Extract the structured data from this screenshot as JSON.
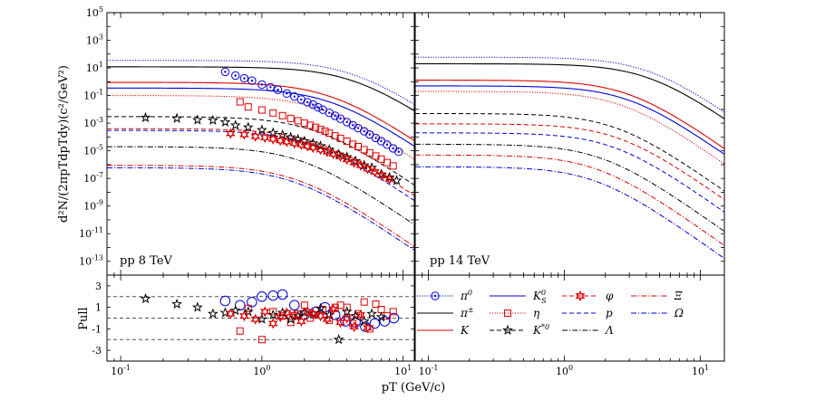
{
  "chart_data": {
    "type": "line",
    "xlabel": "p_T (GeV/c)",
    "xlabel_text": "pT (GeV/c)",
    "ylabel": "d^2N/(2π pT dpT dy)(c^2/GeV^2)",
    "ylabel_text": "d²N/(2πpTdpTdy)(c²/GeV²)",
    "pull_ylabel": "Pull",
    "xscale": "log",
    "yscale": "log",
    "panels": [
      {
        "id": "left",
        "annotation": "pp 8 TeV",
        "xlim": [
          0.08,
          12
        ],
        "ylim": [
          1e-14,
          100000.0
        ]
      },
      {
        "id": "right",
        "annotation": "pp 14 TeV",
        "xlim": [
          0.08,
          15
        ],
        "ylim": [
          1e-14,
          100000.0
        ]
      }
    ],
    "x_ticks": [
      0.1,
      1,
      10
    ],
    "x_tick_labels": [
      "10^-1",
      "10^0",
      "10^1"
    ],
    "y_ticks": [
      5,
      3,
      1,
      -1,
      -3,
      -5,
      -7,
      -9,
      -11,
      -13
    ],
    "y_tick_labels": [
      "10^5",
      "10^3",
      "10^1",
      "10^-1",
      "10^-3",
      "10^-5",
      "10^-7",
      "10^-9",
      "10^-11",
      "10^-13"
    ],
    "pull_ylim": [
      -4,
      4
    ],
    "pull_ticks": [
      3,
      1,
      -1,
      -3
    ],
    "pull_tick_labels": [
      "3",
      "1",
      "-1",
      "-3"
    ],
    "pull_reference_lines": [
      2,
      0,
      -2
    ],
    "series": [
      {
        "name": "π^0",
        "label": "π0",
        "color": "#0000dd",
        "style": "dotted",
        "marker": "circle",
        "curve8": {
          "A": 35,
          "B": 4.5
        },
        "curve14": {
          "A": 60,
          "B": 4.2
        }
      },
      {
        "name": "π^±",
        "label": "π±",
        "color": "#000000",
        "style": "solid",
        "marker": null,
        "curve8": {
          "A": 12,
          "B": 4.5
        },
        "curve14": {
          "A": 20,
          "B": 4.2
        }
      },
      {
        "name": "K",
        "label": "K",
        "color": "#dd0000",
        "style": "solid",
        "marker": null,
        "curve8": {
          "A": 0.9,
          "B": 3.1
        },
        "curve14": {
          "A": 1.3,
          "B": 3.0
        }
      },
      {
        "name": "K^0_S",
        "label": "KS0",
        "color": "#0000dd",
        "style": "solid",
        "marker": null,
        "curve8": {
          "A": 0.35,
          "B": 3.1
        },
        "curve14": {
          "A": 0.5,
          "B": 3.0
        }
      },
      {
        "name": "η",
        "label": "η",
        "color": "#dd0000",
        "style": "dotted",
        "marker": "square",
        "curve8": {
          "A": 0.1,
          "B": 2.7
        },
        "curve14": {
          "A": 0.2,
          "B": 2.7
        }
      },
      {
        "name": "K^*0",
        "label": "K*0",
        "color": "#000000",
        "style": "dashed",
        "marker": "star",
        "curve8": {
          "A": 0.003,
          "B": 2.4
        },
        "curve14": {
          "A": 0.005,
          "B": 2.4
        }
      },
      {
        "name": "φ",
        "label": "φ",
        "color": "#dd0000",
        "style": "dashed",
        "marker": "hexstar",
        "curve8": {
          "A": 0.0004,
          "B": 2.5
        },
        "curve14": {
          "A": 0.0009,
          "B": 2.5
        }
      },
      {
        "name": "p",
        "label": "p",
        "color": "#0000dd",
        "style": "dashed",
        "marker": null,
        "curve8": {
          "A": 0.0003,
          "B": 2.3
        },
        "curve14": {
          "A": 0.0002,
          "B": 2.3
        }
      },
      {
        "name": "Λ",
        "label": "Λ",
        "color": "#000000",
        "style": "dashdot",
        "marker": null,
        "curve8": {
          "A": 2e-05,
          "B": 1.9
        },
        "curve14": {
          "A": 3e-05,
          "B": 1.9
        }
      },
      {
        "name": "Ξ",
        "label": "Ξ",
        "color": "#dd0000",
        "style": "dashdot",
        "marker": null,
        "curve8": {
          "A": 9e-07,
          "B": 1.75
        },
        "curve14": {
          "A": 5e-06,
          "B": 1.75
        }
      },
      {
        "name": "Ω",
        "label": "Ω",
        "color": "#0000dd",
        "style": "dashdot",
        "marker": null,
        "curve8": {
          "A": 6e-07,
          "B": 1.7
        },
        "curve14": {
          "A": 7e-07,
          "B": 1.7
        }
      }
    ],
    "curve_model": {
      "form": "A * (1 + (pT/B)^2)^-3.5",
      "x_range": [
        0.08,
        15
      ]
    },
    "data_points_8TeV": {
      "π^0": {
        "x": [
          0.55,
          0.65,
          0.75,
          0.85,
          1.0,
          1.15,
          1.3,
          1.5,
          1.7,
          1.9,
          2.1,
          2.3,
          2.5,
          2.7,
          3.0,
          3.3,
          3.6,
          4.0,
          4.4,
          4.8,
          5.3,
          5.8,
          6.4,
          7.0,
          7.7,
          8.5,
          9.3
        ],
        "y": [
          5.2,
          2.8,
          1.75,
          1.2,
          0.62,
          0.4,
          0.26,
          0.14,
          0.085,
          0.052,
          0.033,
          0.022,
          0.014,
          0.0095,
          0.0056,
          0.0034,
          0.0021,
          0.0012,
          0.00072,
          0.00044,
          0.00026,
          0.00015,
          8.5e-05,
          5e-05,
          2.8e-05,
          1.5e-05,
          8.5e-06
        ]
      },
      "η": {
        "x": [
          0.7,
          0.8,
          1.0,
          1.2,
          1.4,
          1.6,
          1.8,
          2.0,
          2.2,
          2.4,
          2.6,
          2.8,
          3.0,
          3.3,
          3.6,
          4.0,
          4.4,
          4.8,
          5.3,
          5.8,
          6.4,
          7.0,
          7.7,
          8.5
        ],
        "y": [
          0.035,
          0.015,
          0.009,
          0.0055,
          0.0035,
          0.0022,
          0.0015,
          0.001,
          0.0007,
          0.0005,
          0.00036,
          0.00026,
          0.00019,
          0.00012,
          8e-05,
          5e-05,
          3e-05,
          2e-05,
          1.2e-05,
          7.2e-06,
          4.2e-06,
          2.5e-06,
          1.4e-06,
          8e-07
        ]
      },
      "K^*0": {
        "x": [
          0.15,
          0.25,
          0.35,
          0.45,
          0.55,
          0.65,
          0.8,
          1.0,
          1.2,
          1.4,
          1.6,
          1.8,
          2.0,
          2.3,
          2.6,
          3.0,
          3.5,
          4.0,
          4.6,
          5.3,
          6.0,
          7.0,
          8.0,
          9.0
        ],
        "y": [
          0.0025,
          0.0022,
          0.0017,
          0.0016,
          0.0012,
          0.0007,
          0.0005,
          0.00032,
          0.0002,
          0.00014,
          9.5e-05,
          6.8e-05,
          5e-05,
          3.5e-05,
          2.2e-05,
          1.2e-05,
          5.5e-06,
          3.5e-06,
          1.8e-06,
          9e-07,
          6e-07,
          2e-07,
          1.2e-07,
          7e-08
        ]
      },
      "φ": {
        "x": [
          0.6,
          0.75,
          0.9,
          1.05,
          1.2,
          1.35,
          1.5,
          1.7,
          1.9,
          2.1,
          2.3,
          2.6,
          2.9,
          3.2,
          3.6,
          4.0,
          4.5,
          5.0,
          5.6,
          6.3,
          7.1,
          8.0
        ],
        "y": [
          0.00018,
          0.00015,
          0.00011,
          9e-05,
          7e-05,
          5.5e-05,
          4.5e-05,
          3.5e-05,
          2.8e-05,
          2.2e-05,
          1.7e-05,
          1.2e-05,
          8.5e-06,
          6e-06,
          3.8e-06,
          2.4e-06,
          1.4e-06,
          9e-07,
          5e-07,
          3e-07,
          1.6e-07,
          9e-08
        ]
      }
    },
    "pull_points_8TeV": {
      "π^0": {
        "x": [
          0.55,
          0.7,
          0.85,
          1.0,
          1.2,
          1.4,
          1.7,
          2.0,
          2.4,
          2.8,
          3.3,
          3.9,
          4.6,
          5.4,
          6.3,
          7.4,
          8.6
        ],
        "y": [
          1.6,
          1.2,
          1.5,
          2.0,
          2.1,
          2.2,
          1.2,
          0.3,
          0.6,
          1.0,
          0.3,
          -0.3,
          -0.4,
          -0.8,
          -0.5,
          -0.3,
          0.0
        ]
      },
      "η": {
        "x": [
          0.7,
          0.8,
          1.0,
          1.2,
          1.4,
          1.6,
          1.8,
          2.0,
          2.2,
          2.4,
          2.7,
          3.0,
          3.3,
          3.6,
          4.0,
          4.4,
          4.8,
          5.3,
          5.8,
          6.4,
          7.0,
          7.7,
          8.5
        ],
        "y": [
          -1.2,
          0.9,
          -2.0,
          0.6,
          0.2,
          -0.4,
          0.4,
          1.2,
          0.0,
          0.3,
          0.8,
          -0.2,
          1.0,
          1.2,
          1.0,
          -0.5,
          0.4,
          1.5,
          -1.0,
          1.3,
          0.8,
          0.2,
          0.6
        ]
      },
      "K^*0": {
        "x": [
          0.15,
          0.25,
          0.35,
          0.45,
          0.55,
          0.65,
          0.8,
          1.0,
          1.2,
          1.4,
          1.6,
          1.8,
          2.0,
          2.3,
          2.6,
          3.0,
          3.5,
          4.0,
          4.6,
          5.3,
          6.0,
          7.0
        ],
        "y": [
          1.8,
          1.3,
          1.0,
          0.4,
          0.5,
          0.7,
          0.6,
          -0.1,
          0.3,
          0.5,
          -0.1,
          0.2,
          0.5,
          0.4,
          0.9,
          0.3,
          -2.0,
          0.6,
          0.2,
          -0.3,
          0.4,
          0.1
        ]
      },
      "φ": {
        "x": [
          0.6,
          0.75,
          0.9,
          1.05,
          1.2,
          1.35,
          1.5,
          1.7,
          1.9,
          2.1,
          2.3,
          2.6,
          2.9,
          3.2,
          3.6,
          4.0,
          4.5,
          5.0,
          5.6
        ],
        "y": [
          0.4,
          0.2,
          -0.1,
          0.6,
          -0.5,
          0.1,
          0.5,
          0.3,
          -0.3,
          0.6,
          0.4,
          0.2,
          -0.1,
          0.8,
          -0.4,
          0.0,
          -0.8,
          0.3,
          -0.9
        ]
      }
    }
  }
}
